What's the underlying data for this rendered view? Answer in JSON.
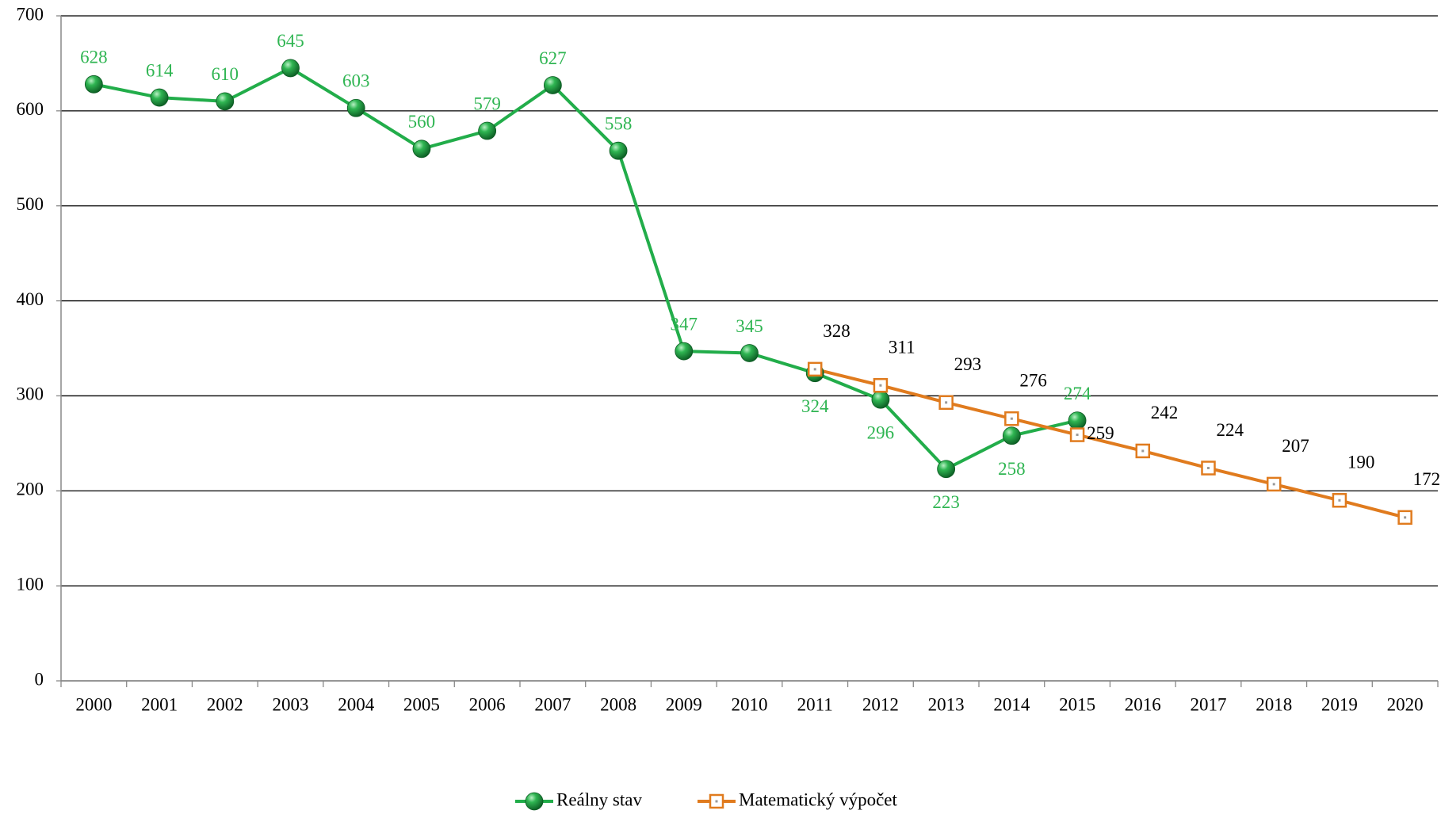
{
  "chart_data": {
    "type": "line",
    "categories": [
      "2000",
      "2001",
      "2002",
      "2003",
      "2004",
      "2005",
      "2006",
      "2007",
      "2008",
      "2009",
      "2010",
      "2011",
      "2012",
      "2013",
      "2014",
      "2015",
      "2016",
      "2017",
      "2018",
      "2019",
      "2020"
    ],
    "series": [
      {
        "name": "Reálny stav",
        "color": "#22ad4a",
        "label_color": "#2fb552",
        "values": [
          628,
          614,
          610,
          645,
          603,
          560,
          579,
          627,
          558,
          347,
          345,
          324,
          296,
          223,
          258,
          274,
          null,
          null,
          null,
          null,
          null
        ]
      },
      {
        "name": "Matematický výpočet",
        "color": "#e07b1e",
        "label_color": "#000000",
        "values": [
          null,
          null,
          null,
          null,
          null,
          null,
          null,
          null,
          null,
          null,
          null,
          328,
          311,
          293,
          276,
          259,
          242,
          224,
          207,
          190,
          172
        ]
      }
    ],
    "ylim": [
      0,
      700
    ],
    "yticks": [
      0,
      100,
      200,
      300,
      400,
      500,
      600,
      700
    ],
    "grid": true,
    "legend": "bottom"
  }
}
